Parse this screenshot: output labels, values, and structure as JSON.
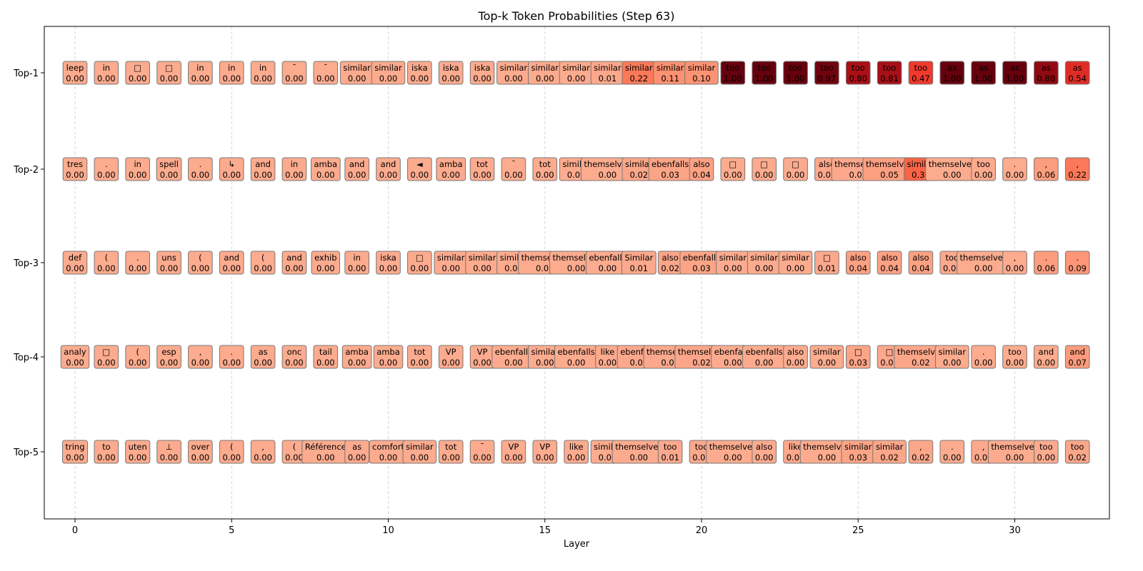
{
  "chart_data": {
    "type": "heatmap",
    "title": "Top-k Token Probabilities (Step 63)",
    "xlabel": "Layer",
    "ylabel": "",
    "xlim": [
      -1,
      32.5
    ],
    "x_ticks": [
      0,
      5,
      10,
      15,
      20,
      25,
      30
    ],
    "row_labels": [
      "Top-1",
      "Top-2",
      "Top-3",
      "Top-4",
      "Top-5"
    ],
    "grid": "vertical dashed at x ticks",
    "colormap": "Reds",
    "layers": [
      0,
      1,
      2,
      3,
      4,
      5,
      6,
      7,
      8,
      9,
      10,
      11,
      12,
      13,
      14,
      15,
      16,
      17,
      18,
      19,
      20,
      21,
      22,
      23,
      24,
      25,
      26,
      27,
      28,
      29,
      30,
      31,
      32
    ],
    "rows": [
      {
        "label": "Top-1",
        "tokens": [
          "leep",
          "in",
          "□",
          "□",
          "in",
          "in",
          "in",
          "¯",
          "¯",
          "similar",
          "similar",
          "iska",
          "iska",
          "iska",
          "similar",
          "similar",
          "similar",
          "similar",
          "similar",
          "similar",
          "similar",
          "too",
          "too",
          "too",
          "too",
          "too",
          "too",
          "too",
          "as",
          "as",
          "as",
          "as",
          "as"
        ],
        "probs": [
          0.0,
          0.0,
          0.0,
          0.0,
          0.0,
          0.0,
          0.0,
          0.0,
          0.0,
          0.0,
          0.0,
          0.0,
          0.0,
          0.0,
          0.0,
          0.0,
          0.0,
          0.01,
          0.22,
          0.11,
          0.1,
          1.0,
          1.0,
          1.0,
          0.97,
          0.8,
          0.81,
          0.47,
          1.0,
          1.0,
          1.0,
          0.88,
          0.54
        ]
      },
      {
        "label": "Top-2",
        "tokens": [
          "tres",
          ".",
          "in",
          "spell",
          ".",
          "↳",
          "and",
          "in",
          "amba",
          "and",
          "and",
          "◄",
          "amba",
          "tot",
          "¯",
          "tot",
          "similar",
          "themselves",
          "similar",
          "ebenfalls",
          "also",
          "□",
          "□",
          "□",
          "also",
          "themselves",
          "themselves",
          "similar",
          "themselves",
          "too",
          ".",
          ",",
          ","
        ],
        "probs": [
          0.0,
          0.0,
          0.0,
          0.0,
          0.0,
          0.0,
          0.0,
          0.0,
          0.0,
          0.0,
          0.0,
          0.0,
          0.0,
          0.0,
          0.0,
          0.0,
          0.0,
          0.0,
          0.02,
          0.03,
          0.04,
          0.0,
          0.0,
          0.0,
          0.01,
          0.01,
          0.05,
          0.31,
          0.0,
          0.0,
          0.0,
          0.06,
          0.22
        ]
      },
      {
        "label": "Top-3",
        "tokens": [
          "def",
          "(",
          ".",
          "uns",
          "(",
          "and",
          "(",
          "and",
          "exhib",
          "in",
          "iska",
          "□",
          "similar",
          "similar",
          "similar",
          "themselves",
          "themselves",
          "ebenfalls",
          "Similar",
          "also",
          "ebenfalls",
          "similar",
          "similar",
          "similar",
          "□",
          "also",
          "also",
          "also",
          "too",
          "themselves",
          ",",
          ".",
          "."
        ],
        "probs": [
          0.0,
          0.0,
          0.0,
          0.0,
          0.0,
          0.0,
          0.0,
          0.0,
          0.0,
          0.0,
          0.0,
          0.0,
          0.0,
          0.0,
          0.0,
          0.0,
          0.0,
          0.0,
          0.01,
          0.02,
          0.03,
          0.0,
          0.0,
          0.0,
          0.01,
          0.04,
          0.04,
          0.04,
          0.01,
          0.0,
          0.0,
          0.06,
          0.09
        ]
      },
      {
        "label": "Top-4",
        "tokens": [
          "analy",
          "□",
          "(",
          "esp",
          ",",
          ".",
          "as",
          "onc",
          "tail",
          "amba",
          "amba",
          "tot",
          "VP",
          "VP",
          "ebenfalls",
          "similar",
          "ebenfalls",
          "like",
          "ebenfalls",
          "themselves",
          "themselves",
          "ebenfalls",
          "ebenfalls",
          "also",
          "similar",
          "□",
          "□",
          "themselves",
          "similar",
          ".",
          "too",
          "and",
          "and"
        ],
        "probs": [
          0.0,
          0.0,
          0.0,
          0.0,
          0.0,
          0.0,
          0.0,
          0.0,
          0.0,
          0.0,
          0.0,
          0.0,
          0.0,
          0.0,
          0.0,
          0.0,
          0.0,
          0.0,
          0.01,
          0.01,
          0.02,
          0.0,
          0.0,
          0.0,
          0.0,
          0.03,
          0.01,
          0.02,
          0.0,
          0.0,
          0.0,
          0.0,
          0.07
        ]
      },
      {
        "label": "Top-5",
        "tokens": [
          "tring",
          "to",
          "uten",
          "⊥",
          "over",
          "(",
          ",",
          "(",
          "Référence",
          "as",
          "comfort",
          "similar",
          "tot",
          "¯",
          "VP",
          "VP",
          "like",
          "similar",
          "themselves",
          "too",
          "too",
          "themselves",
          "also",
          "like",
          "themselves",
          "similar",
          "similar",
          ",",
          ".",
          ",",
          "themselves",
          "too",
          "too"
        ],
        "probs": [
          0.0,
          0.0,
          0.0,
          0.0,
          0.0,
          0.0,
          0.0,
          0.0,
          0.0,
          0.0,
          0.0,
          0.0,
          0.0,
          0.0,
          0.0,
          0.0,
          0.0,
          0.0,
          0.0,
          0.01,
          0.01,
          0.0,
          0.0,
          0.01,
          0.0,
          0.03,
          0.02,
          0.02,
          0.0,
          0.01,
          0.0,
          0.0,
          0.02
        ]
      }
    ]
  }
}
